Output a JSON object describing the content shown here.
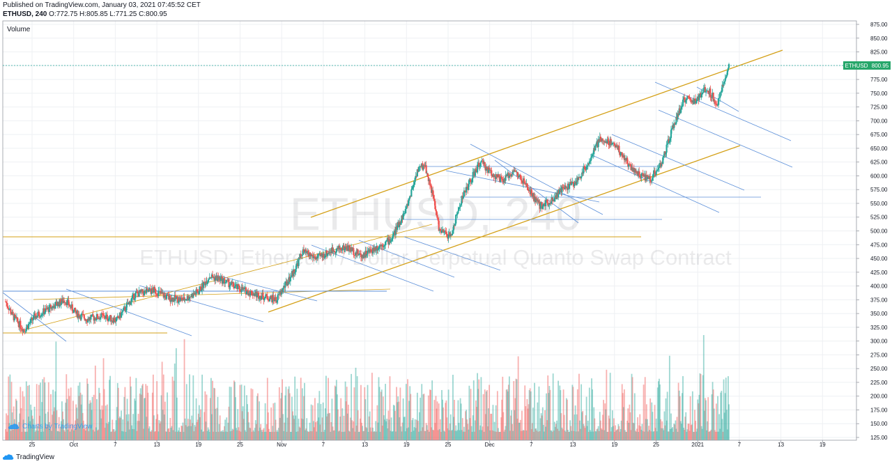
{
  "header": {
    "published": "Published on TradingView.com, January 03, 2021 07:45:52 CET",
    "symbol_interval": "ETHUSD, 240",
    "ohlc": "O:772.75 H:805.85 L:771.25 C:800.95"
  },
  "pane_label": "Volume",
  "watermark": {
    "big": "ETHUSD, 240",
    "sub": "ETHUSD: Ethereum / Dollar Perpetual Quanto Swap Contract"
  },
  "price_badge": {
    "symbol": "ETHUSD",
    "value": "800.95"
  },
  "attribution_inner": "Charts by TradingView",
  "footer": "TradingView",
  "colors": {
    "up": "#26a69a",
    "down": "#ef5350",
    "trend": "#d4a017",
    "channel": "#5b8fd9",
    "grid": "#eef0f3",
    "badge": "#26a66a"
  },
  "chart_data": {
    "type": "candlestick",
    "y_ticks": [
      "875.00",
      "850.00",
      "825.00",
      "800.00",
      "775.00",
      "750.00",
      "725.00",
      "700.00",
      "675.00",
      "650.00",
      "625.00",
      "600.00",
      "575.00",
      "550.00",
      "525.00",
      "500.00",
      "475.00",
      "450.00",
      "425.00",
      "400.00",
      "375.00",
      "350.00",
      "325.00",
      "300.00",
      "275.00",
      "250.00",
      "225.00",
      "200.00",
      "175.00",
      "150.00",
      "125.00"
    ],
    "x_ticks": [
      "25",
      "Oct",
      "7",
      "13",
      "19",
      "25",
      "Nov",
      "7",
      "13",
      "19",
      "25",
      "Dec",
      "7",
      "13",
      "19",
      "25",
      "2021",
      "7",
      "13",
      "19"
    ],
    "ylim": [
      125,
      875
    ],
    "last_price": 800.95,
    "price_path": [
      [
        0,
        372
      ],
      [
        2,
        345
      ],
      [
        5,
        320
      ],
      [
        8,
        345
      ],
      [
        12,
        360
      ],
      [
        16,
        375
      ],
      [
        19,
        350
      ],
      [
        22,
        340
      ],
      [
        26,
        345
      ],
      [
        30,
        338
      ],
      [
        35,
        385
      ],
      [
        40,
        392
      ],
      [
        44,
        378
      ],
      [
        48,
        375
      ],
      [
        52,
        390
      ],
      [
        55,
        418
      ],
      [
        58,
        412
      ],
      [
        62,
        398
      ],
      [
        66,
        388
      ],
      [
        70,
        380
      ],
      [
        73,
        375
      ],
      [
        78,
        430
      ],
      [
        80,
        462
      ],
      [
        84,
        450
      ],
      [
        88,
        465
      ],
      [
        92,
        470
      ],
      [
        96,
        455
      ],
      [
        100,
        470
      ],
      [
        104,
        485
      ],
      [
        108,
        540
      ],
      [
        111,
        610
      ],
      [
        113,
        620
      ],
      [
        115,
        570
      ],
      [
        117,
        500
      ],
      [
        120,
        490
      ],
      [
        123,
        560
      ],
      [
        126,
        600
      ],
      [
        128,
        625
      ],
      [
        131,
        605
      ],
      [
        134,
        590
      ],
      [
        137,
        610
      ],
      [
        140,
        585
      ],
      [
        144,
        545
      ],
      [
        147,
        555
      ],
      [
        150,
        575
      ],
      [
        154,
        590
      ],
      [
        158,
        635
      ],
      [
        160,
        665
      ],
      [
        164,
        660
      ],
      [
        168,
        620
      ],
      [
        171,
        600
      ],
      [
        174,
        595
      ],
      [
        177,
        625
      ],
      [
        180,
        690
      ],
      [
        183,
        740
      ],
      [
        186,
        735
      ],
      [
        189,
        760
      ],
      [
        192,
        730
      ],
      [
        194,
        780
      ],
      [
        195,
        800.95
      ]
    ]
  }
}
